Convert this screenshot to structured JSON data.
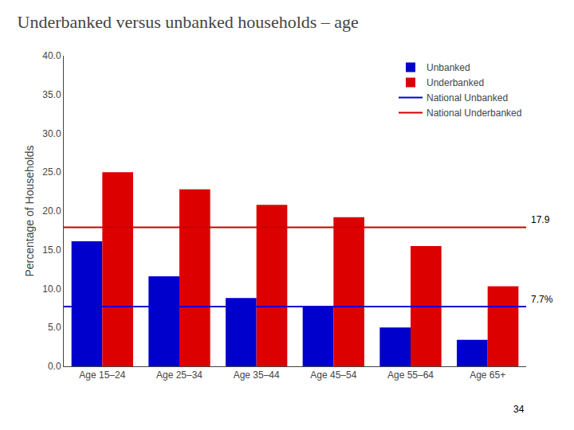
{
  "chart_data": {
    "type": "bar",
    "title": "Underbanked versus unbanked households – age",
    "ylabel": "Percentage of Households",
    "categories": [
      "Age 15–24",
      "Age 25–34",
      "Age 35–44",
      "Age 45–54",
      "Age 55–64",
      "Age 65+"
    ],
    "series": [
      {
        "name": "Unbanked",
        "color": "#0000CC",
        "values": [
          16.1,
          11.6,
          8.8,
          7.6,
          5.0,
          3.4
        ]
      },
      {
        "name": "Underbanked",
        "color": "#DD0000",
        "values": [
          25.0,
          22.8,
          20.8,
          19.2,
          15.5,
          10.3
        ]
      }
    ],
    "reference_lines": [
      {
        "name": "National Unbanked",
        "value": 7.7,
        "color": "#0000CC",
        "label": "7.7%"
      },
      {
        "name": "National Underbanked",
        "value": 17.9,
        "color": "#CC0000",
        "label": "17.9"
      }
    ],
    "ylim": [
      0,
      40
    ],
    "yticks": [
      {
        "value": 0,
        "label": "0.0"
      },
      {
        "value": 5,
        "label": "5.0"
      },
      {
        "value": 10,
        "label": "10.0"
      },
      {
        "value": 15,
        "label": "15.0"
      },
      {
        "value": 20,
        "label": "20.0"
      },
      {
        "value": 25,
        "label": "25.0"
      },
      {
        "value": 30,
        "label": "30.0"
      },
      {
        "value": 35,
        "label": "35.0"
      },
      {
        "value": 40,
        "label": "40.0"
      }
    ],
    "grid": false,
    "legend": "upper right",
    "page_number": "34"
  }
}
